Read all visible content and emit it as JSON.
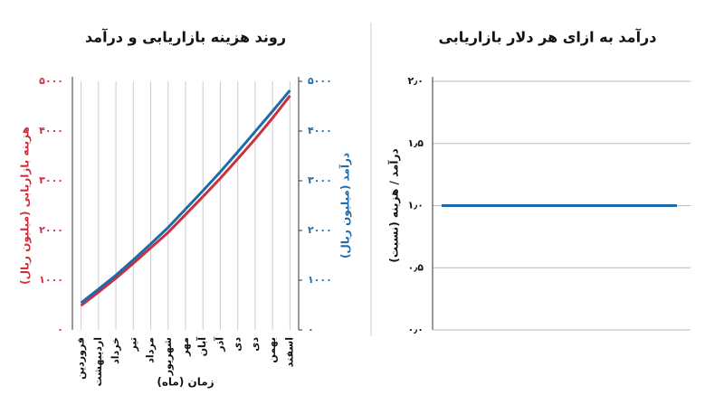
{
  "chart_data": [
    {
      "type": "line",
      "title": "روند هزینه بازاریابی و درآمد",
      "x_label": "زمان (ماه)",
      "y_label": "هزینه بازاریابی (میلیون ریال)",
      "y2_label": "درآمد (میلیون ریال)",
      "categories": [
        "فروردین",
        "اردیبهشت",
        "خرداد",
        "تیر",
        "مرداد",
        "شهریور",
        "مهر",
        "آبان",
        "آذر",
        "دی",
        "دی",
        "بهمن",
        "اسفند"
      ],
      "series": [
        {
          "name": "هزینه بازاریابی",
          "color": "#c8313d",
          "values": [
            490,
            760,
            1040,
            1340,
            1650,
            1960,
            2320,
            2680,
            3050,
            3440,
            3840,
            4260,
            4710
          ]
        },
        {
          "name": "درآمد",
          "color": "#1f6aa8",
          "axis": "y2",
          "values": [
            545,
            820,
            1100,
            1410,
            1730,
            2060,
            2430,
            2800,
            3180,
            3580,
            3990,
            4400,
            4820
          ]
        }
      ],
      "ylim": [
        0,
        5000
      ],
      "yticks": [
        {
          "value": 0,
          "label": "۰"
        },
        {
          "value": 1000,
          "label": "۱۰۰۰"
        },
        {
          "value": 2000,
          "label": "۲۰۰۰"
        },
        {
          "value": 3000,
          "label": "۳۰۰۰"
        },
        {
          "value": 4000,
          "label": "۴۰۰۰"
        },
        {
          "value": 5000,
          "label": "۵۰۰۰"
        }
      ],
      "y2lim": [
        0,
        5000
      ],
      "y2ticks": [
        {
          "value": 0,
          "label": "۰"
        },
        {
          "value": 1000,
          "label": "۱۰۰۰"
        },
        {
          "value": 2000,
          "label": "۲۰۰۰"
        },
        {
          "value": 3000,
          "label": "۳۰۰۰"
        },
        {
          "value": 4000,
          "label": "۴۰۰۰"
        },
        {
          "value": 5000,
          "label": "۵۰۰۰"
        }
      ],
      "grid": "x"
    },
    {
      "type": "line",
      "title": "درآمد به ازای هر دلار بازاریابی",
      "y_label": "درآمد / هزینه (نسبت)",
      "categories": [
        null,
        null
      ],
      "series": [
        {
          "color": "#1f6aa8",
          "values": [
            1.0,
            1.0
          ]
        }
      ],
      "ylim": [
        0,
        2
      ],
      "yticks": [
        {
          "value": 0,
          "label": "۰٫۰"
        },
        {
          "value": 0.5,
          "label": "۰٫۵"
        },
        {
          "value": 1,
          "label": "۱٫۰"
        },
        {
          "value": 1.5,
          "label": "۱٫۵"
        },
        {
          "value": 2,
          "label": "۲٫۰"
        }
      ],
      "grid": "y"
    }
  ]
}
